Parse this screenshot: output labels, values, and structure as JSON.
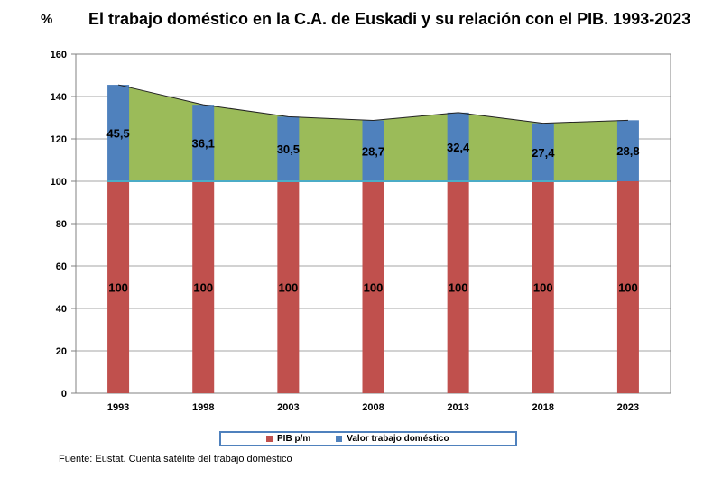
{
  "header": {
    "unit_label": "%",
    "title": "El trabajo doméstico en la C.A. de Euskadi y su relación con el PIB. 1993-2023"
  },
  "source": "Fuente: Eustat. Cuenta satélite del trabajo doméstico",
  "colors": {
    "pib": "#c0504d",
    "trabajo": "#4f81bd",
    "area": "#9bbb59",
    "baseline": "#4bacc6"
  },
  "chart_data": {
    "type": "bar",
    "stacked": true,
    "categories": [
      "1993",
      "1998",
      "2003",
      "2008",
      "2013",
      "2018",
      "2023"
    ],
    "series": [
      {
        "name": "PIB p/m",
        "values": [
          100,
          100,
          100,
          100,
          100,
          100,
          100
        ]
      },
      {
        "name": "Valor trabajo doméstico",
        "values": [
          45.5,
          36.1,
          30.5,
          28.7,
          32.4,
          27.4,
          28.8
        ]
      }
    ],
    "pib_labels": [
      "100",
      "100",
      "100",
      "100",
      "100",
      "100",
      "100"
    ],
    "trabajo_labels": [
      "45,5",
      "36,1",
      "30,5",
      "28,7",
      "32,4",
      "27,4",
      "28,8"
    ],
    "overlay": "area of total (PIB + trabajo doméstico) above 100",
    "ylim": [
      0,
      160
    ],
    "yticks": [
      0,
      20,
      40,
      60,
      80,
      100,
      120,
      140,
      160
    ],
    "grid": true,
    "legend_position": "bottom"
  }
}
